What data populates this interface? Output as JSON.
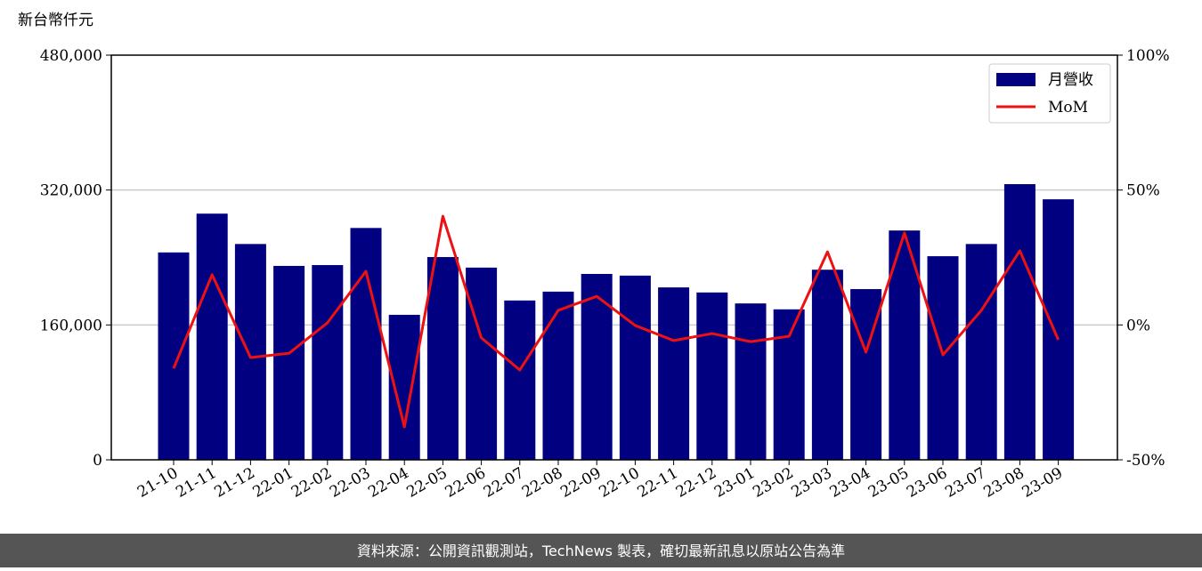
{
  "chart_data": {
    "type": "bar",
    "y_label": "新台幣仟元",
    "categories": [
      "21-10",
      "21-11",
      "21-12",
      "22-01",
      "22-02",
      "22-03",
      "22-04",
      "22-05",
      "22-06",
      "22-07",
      "22-08",
      "22-09",
      "22-10",
      "22-11",
      "22-12",
      "23-01",
      "23-02",
      "23-03",
      "23-04",
      "23-05",
      "23-06",
      "23-07",
      "23-08",
      "23-09"
    ],
    "series": [
      {
        "name": "月營收",
        "type": "bar",
        "color": "#000080",
        "values": [
          246000,
          292000,
          256000,
          230000,
          231000,
          275000,
          172000,
          240500,
          228000,
          189000,
          199500,
          220500,
          218500,
          204500,
          198500,
          185500,
          178500,
          225500,
          202500,
          272000,
          241500,
          256000,
          327000,
          309000
        ]
      },
      {
        "name": "MoM",
        "type": "line",
        "axis": "y2",
        "color": "#ee1111",
        "values": [
          -16.1,
          18.6,
          -12.1,
          -10.5,
          0.8,
          19.9,
          -37.8,
          40.3,
          -4.8,
          -16.7,
          5.4,
          10.6,
          -0.2,
          -5.8,
          -3.2,
          -6.2,
          -4.2,
          27.1,
          -10.1,
          34.1,
          -11.1,
          5.4,
          27.5,
          -5.5
        ]
      }
    ],
    "ylim": [
      0,
      480000
    ],
    "yticks": [
      0,
      {
        "value": 160000,
        "label": "160,000"
      },
      {
        "value": 320000,
        "label": "320,000"
      },
      {
        "value": 480000,
        "label": "480,000"
      }
    ],
    "y2lim": [
      -50,
      100
    ],
    "y2ticks": [
      {
        "value": -50,
        "label": "-50%"
      },
      {
        "value": 0,
        "label": "0%"
      },
      {
        "value": 50,
        "label": "50%"
      },
      {
        "value": 100,
        "label": "100%"
      }
    ],
    "grid": true,
    "legend": "upper right"
  },
  "footer": "資料來源：公開資訊觀測站，TechNews 製表，確切最新訊息以原站公告為準"
}
